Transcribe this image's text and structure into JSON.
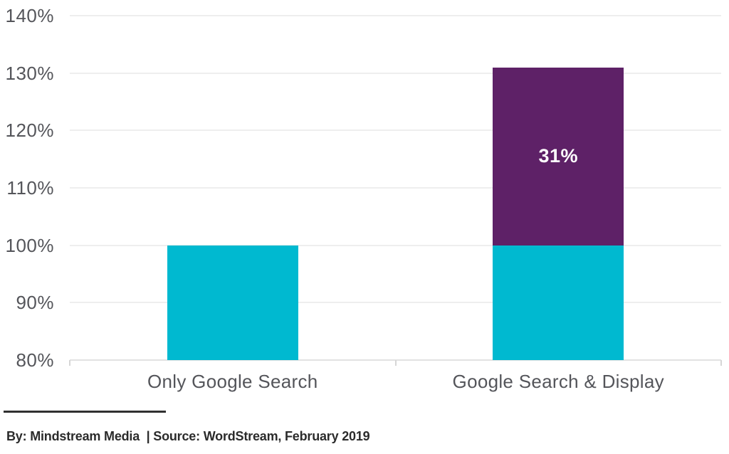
{
  "chart_data": {
    "type": "bar",
    "stacked": true,
    "title": "",
    "categories": [
      "Only Google Search",
      "Google Search & Display"
    ],
    "series": [
      {
        "name": "cyan-base-segment",
        "color": "#00b9d0",
        "values": [
          100,
          100
        ],
        "labels": [
          null,
          null
        ]
      },
      {
        "name": "purple-increment-segment",
        "color": "#5e2167",
        "values": [
          0,
          31
        ],
        "labels": [
          null,
          "31%"
        ]
      }
    ],
    "totals": [
      100,
      131
    ],
    "y_axis": {
      "min": 80,
      "max": 140,
      "ticks": [
        {
          "value": 140,
          "label": "140%"
        },
        {
          "value": 130,
          "label": "130%"
        },
        {
          "value": 120,
          "label": "120%"
        },
        {
          "value": 110,
          "label": "110%"
        },
        {
          "value": 100,
          "label": "100%"
        },
        {
          "value": 90,
          "label": "90%"
        },
        {
          "value": 80,
          "label": "80%"
        }
      ]
    },
    "grid": true,
    "legend": "none",
    "baseline": 80
  },
  "footer": {
    "attribution": "By: Mindstream Media  | Source: WordStream, February 2019"
  },
  "colors": {
    "cyan": "#00b9d0",
    "purple": "#5e2167",
    "label_gray": "#54555a",
    "gridline": "#eeeeee",
    "axis_line": "#e2e2e2",
    "separator": "#303030",
    "footer_text": "#2b2b2b",
    "segment_label": "#ffffff",
    "background": "#ffffff"
  }
}
